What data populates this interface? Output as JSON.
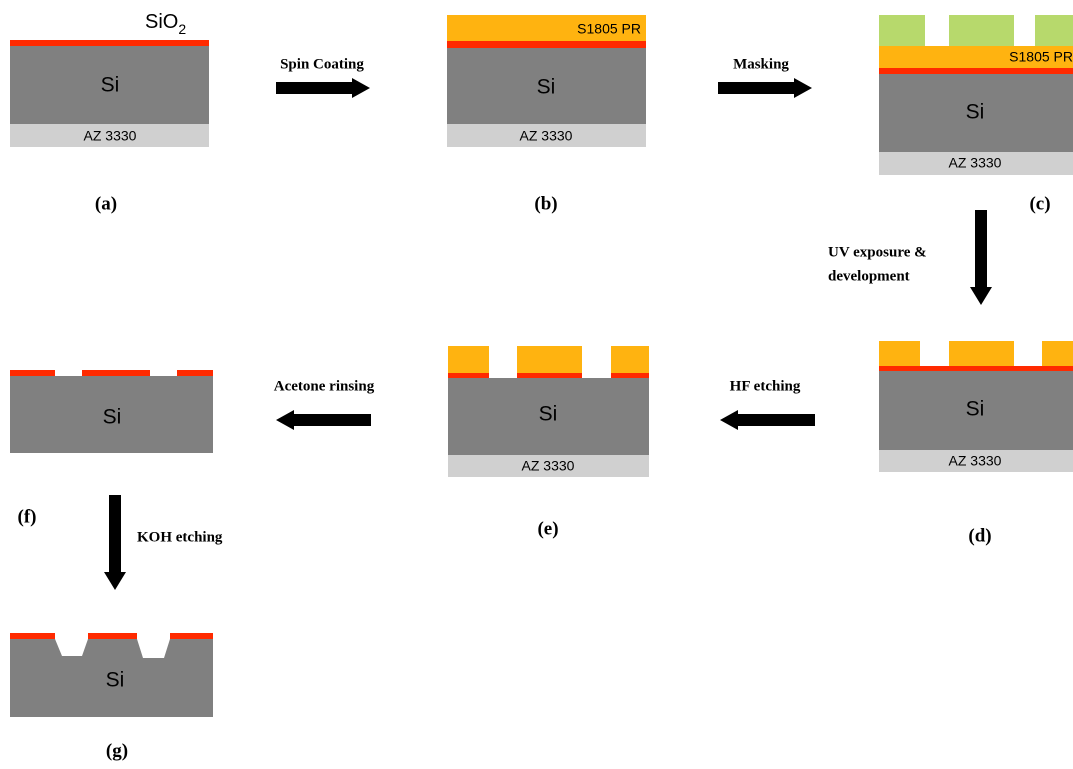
{
  "panels": [
    {
      "label": "(a)",
      "substrate": "Si",
      "backside": "AZ 3330",
      "oxide": {
        "main": "SiO",
        "sub": "2"
      }
    },
    {
      "label": "(b)",
      "substrate": "Si",
      "backside": "AZ 3330",
      "resist": "S1805 PR"
    },
    {
      "label": "(c)",
      "substrate": "Si",
      "backside": "AZ 3330",
      "resist": "S1805 PR"
    },
    {
      "label": "(d)",
      "substrate": "Si",
      "backside": "AZ 3330"
    },
    {
      "label": "(e)",
      "substrate": "Si",
      "backside": "AZ 3330"
    },
    {
      "label": "(f)",
      "substrate": "Si"
    },
    {
      "label": "(g)",
      "substrate": "Si"
    }
  ],
  "steps": [
    {
      "lines": [
        "Spin Coating"
      ]
    },
    {
      "lines": [
        "Masking"
      ]
    },
    {
      "lines": [
        "UV exposure &",
        "development"
      ]
    },
    {
      "lines": [
        "HF etching"
      ]
    },
    {
      "lines": [
        "Acetone rinsing"
      ]
    },
    {
      "lines": [
        "KOH etching"
      ]
    }
  ]
}
